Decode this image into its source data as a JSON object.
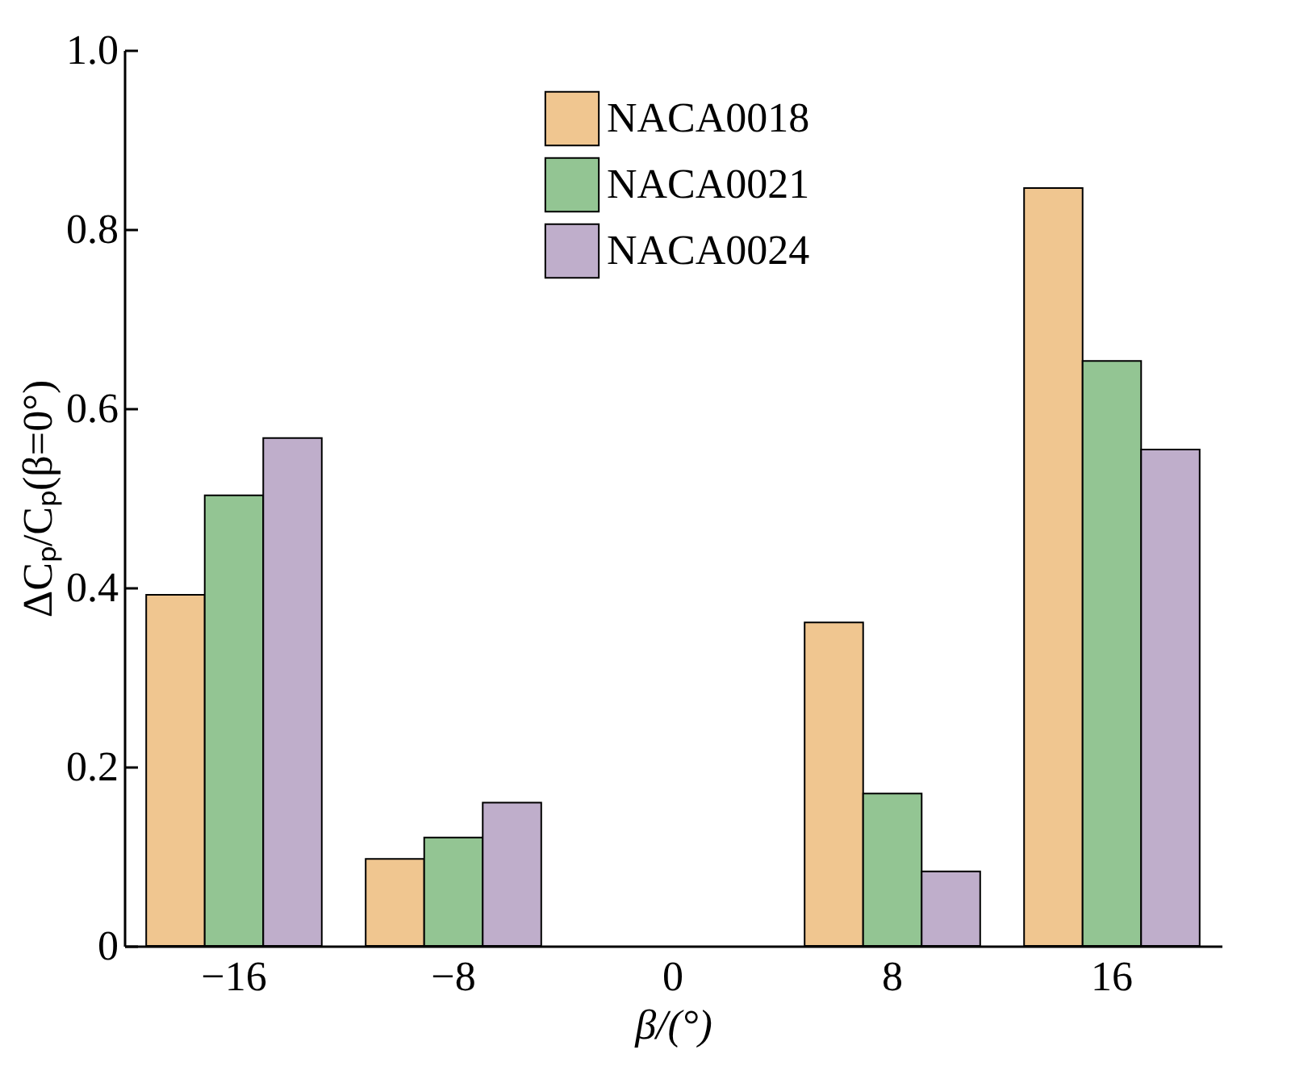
{
  "chart_data": {
    "type": "bar",
    "xlabel": "β/(°)",
    "ylabel": "ΔCₚ/Cₚ(β=0°)",
    "categories": [
      "−16",
      "−8",
      "0",
      "8",
      "16"
    ],
    "series": [
      {
        "name": "NACA0018",
        "color": "#f0c690",
        "values": [
          0.392,
          0.097,
          0,
          0.361,
          0.846
        ]
      },
      {
        "name": "NACA0021",
        "color": "#93c593",
        "values": [
          0.503,
          0.121,
          0,
          0.17,
          0.653
        ]
      },
      {
        "name": "NACA0024",
        "color": "#bfaecb",
        "values": [
          0.567,
          0.16,
          0,
          0.083,
          0.554
        ]
      }
    ],
    "ylim": [
      0,
      1
    ],
    "yticks": [
      0,
      0.2,
      0.4,
      0.6,
      0.8,
      {
        "value": 1,
        "label": "1.0"
      }
    ],
    "grid": false,
    "legend": "top right"
  }
}
